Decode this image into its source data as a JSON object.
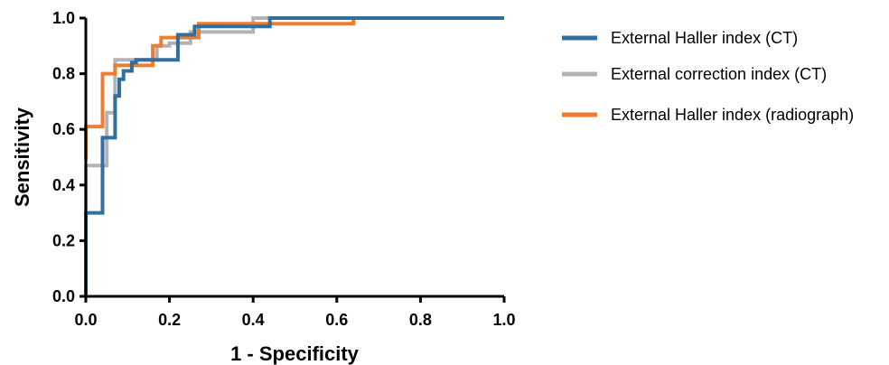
{
  "chart_data": {
    "type": "line",
    "title": "",
    "xlabel": "1 - Specificity",
    "ylabel": "Sensitivity",
    "xlim": [
      0,
      1
    ],
    "ylim": [
      0,
      1
    ],
    "x_ticks": [
      "0.0",
      "0.2",
      "0.4",
      "0.6",
      "0.8",
      "1.0"
    ],
    "y_ticks": [
      "0.0",
      "0.2",
      "0.4",
      "0.6",
      "0.8",
      "1.0"
    ],
    "grid": false,
    "legend_position": "right",
    "step": true,
    "series": [
      {
        "name": "External Haller index (CT)",
        "color": "#326f9e",
        "x": [
          0,
          0,
          0.04,
          0.04,
          0.07,
          0.07,
          0.08,
          0.08,
          0.09,
          0.09,
          0.11,
          0.11,
          0.12,
          0.12,
          0.22,
          0.22,
          0.26,
          0.26,
          0.44,
          0.44,
          1.0
        ],
        "y": [
          0,
          0.3,
          0.3,
          0.57,
          0.57,
          0.72,
          0.72,
          0.78,
          0.78,
          0.81,
          0.81,
          0.84,
          0.84,
          0.85,
          0.85,
          0.94,
          0.94,
          0.97,
          0.97,
          1.0,
          1.0
        ]
      },
      {
        "name": "External correction index (CT)",
        "color": "#b0b4b9",
        "x": [
          0,
          0,
          0.05,
          0.05,
          0.07,
          0.07,
          0.17,
          0.17,
          0.2,
          0.2,
          0.25,
          0.25,
          0.4,
          0.4,
          1.0
        ],
        "y": [
          0.31,
          0.47,
          0.47,
          0.66,
          0.66,
          0.85,
          0.85,
          0.9,
          0.9,
          0.91,
          0.91,
          0.95,
          0.95,
          1.0,
          1.0
        ]
      },
      {
        "name": "External Haller index (radiograph)",
        "color": "#ed7d31",
        "x": [
          0,
          0,
          0.04,
          0.04,
          0.07,
          0.07,
          0.16,
          0.16,
          0.18,
          0.18,
          0.27,
          0.27,
          0.64,
          0.64,
          1.0
        ],
        "y": [
          0.49,
          0.61,
          0.61,
          0.8,
          0.8,
          0.83,
          0.83,
          0.9,
          0.9,
          0.93,
          0.93,
          0.98,
          0.98,
          1.0,
          1.0
        ]
      }
    ]
  }
}
